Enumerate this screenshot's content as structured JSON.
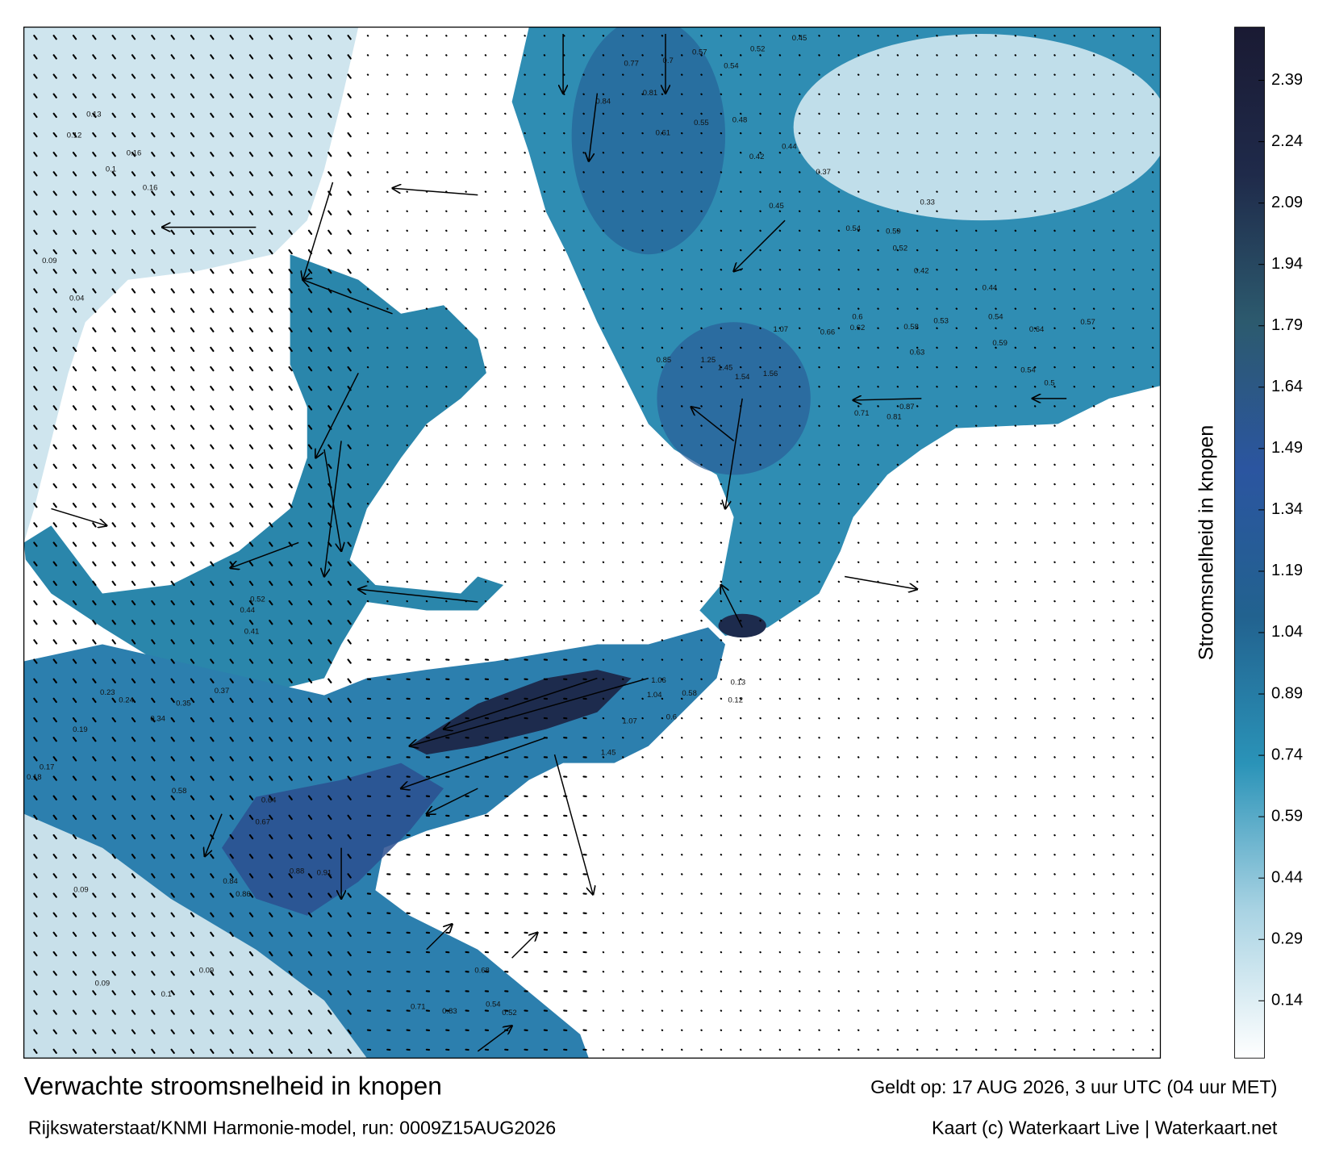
{
  "title": "Verwachte stroomsnelheid in knopen",
  "subtitle": "Rijkswaterstaat/KNMI Harmonie-model, run: 0009Z15AUG2026",
  "valid_time": "Geldt op: 17 AUG 2026, 3 uur UTC (04 uur MET)",
  "credit": "Kaart (c) Waterkaart Live | Waterkaart.net",
  "colorbar": {
    "label": "Stroomsnelheid in knopen",
    "range": [
      0,
      2.52
    ],
    "ticks": [
      0.14,
      0.29,
      0.44,
      0.59,
      0.74,
      0.89,
      1.04,
      1.19,
      1.34,
      1.49,
      1.64,
      1.79,
      1.94,
      2.09,
      2.24,
      2.39
    ],
    "colors": [
      "#ffffff",
      "#a9d3e3",
      "#2a93b8",
      "#22628f",
      "#2b55a0",
      "#2c5a6e",
      "#1f2a4a",
      "#1a1a33"
    ]
  },
  "speed_labels": [
    "0.57",
    "0.54",
    "0.52",
    "0.45",
    "0.77",
    "0.7",
    "0.84",
    "0.81",
    "0.61",
    "0.55",
    "0.48",
    "0.42",
    "0.44",
    "0.37",
    "0.33",
    "0.45",
    "0.54",
    "0.59",
    "0.52",
    "0.42",
    "0.44",
    "0.53",
    "0.58",
    "0.63",
    "0.54",
    "0.64",
    "0.59",
    "0.87",
    "0.81",
    "0.71",
    "1.56",
    "1.54",
    "1.07",
    "1.45",
    "1.25",
    "0.66",
    "0.62",
    "0.6",
    "0.85",
    "0.57",
    "0.5",
    "0.54",
    "1.04",
    "1.06",
    "1.45",
    "1.07",
    "0.6",
    "0.58",
    "0.13",
    "0.12",
    "0.13",
    "0.12",
    "0.16",
    "0.09",
    "0.16",
    "0.1",
    "0.04",
    "0.44",
    "0.52",
    "0.41",
    "0.37",
    "0.35",
    "0.34",
    "0.24",
    "0.23",
    "0.19",
    "0.17",
    "0.18",
    "0.09",
    "0.09",
    "0.1",
    "0.09",
    "0.58",
    "0.64",
    "0.67",
    "0.84",
    "0.86",
    "0.91",
    "0.88",
    "0.68",
    "0.71",
    "0.83",
    "0.52",
    "0.54"
  ]
}
